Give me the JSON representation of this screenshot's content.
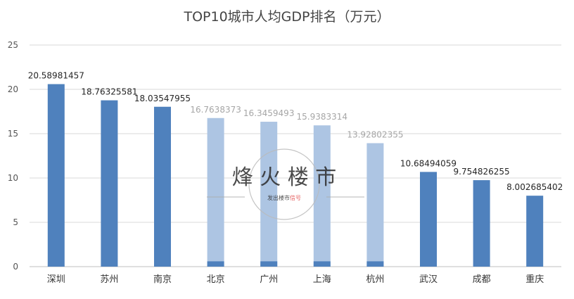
{
  "chart_data": {
    "type": "bar",
    "title": "TOP10城市人均GDP排名（万元）",
    "xlabel": "",
    "ylabel": "",
    "ylim": [
      0,
      25
    ],
    "yticks": [
      0,
      5,
      10,
      15,
      20,
      25
    ],
    "grid": true,
    "legend": "none",
    "categories": [
      "深圳",
      "苏州",
      "南京",
      "北京",
      "广州",
      "上海",
      "杭州",
      "武汉",
      "成都",
      "重庆"
    ],
    "values": [
      20.58981457,
      18.76325581,
      18.03547955,
      16.7638373,
      16.3459493,
      15.9383314,
      13.92802355,
      10.68494059,
      9.754826255,
      8.002685402
    ],
    "value_labels": [
      "20.58981457",
      "18.76325581",
      "18.03547955",
      "16.7638373",
      "16.3459493",
      "15.9383314",
      "13.92802355",
      "10.68494059",
      "9.754826255",
      "8.002685402"
    ],
    "bar_color": "#4f81bd",
    "faded_bar_color": "#adc5e3",
    "faded_label_color": "#a6a6a6",
    "faded_categories": [
      "北京",
      "广州",
      "上海",
      "杭州"
    ],
    "watermark": {
      "text": "烽 火 楼 市",
      "subtitle_prefix": "发出楼市",
      "subtitle_suffix": "信号"
    }
  }
}
